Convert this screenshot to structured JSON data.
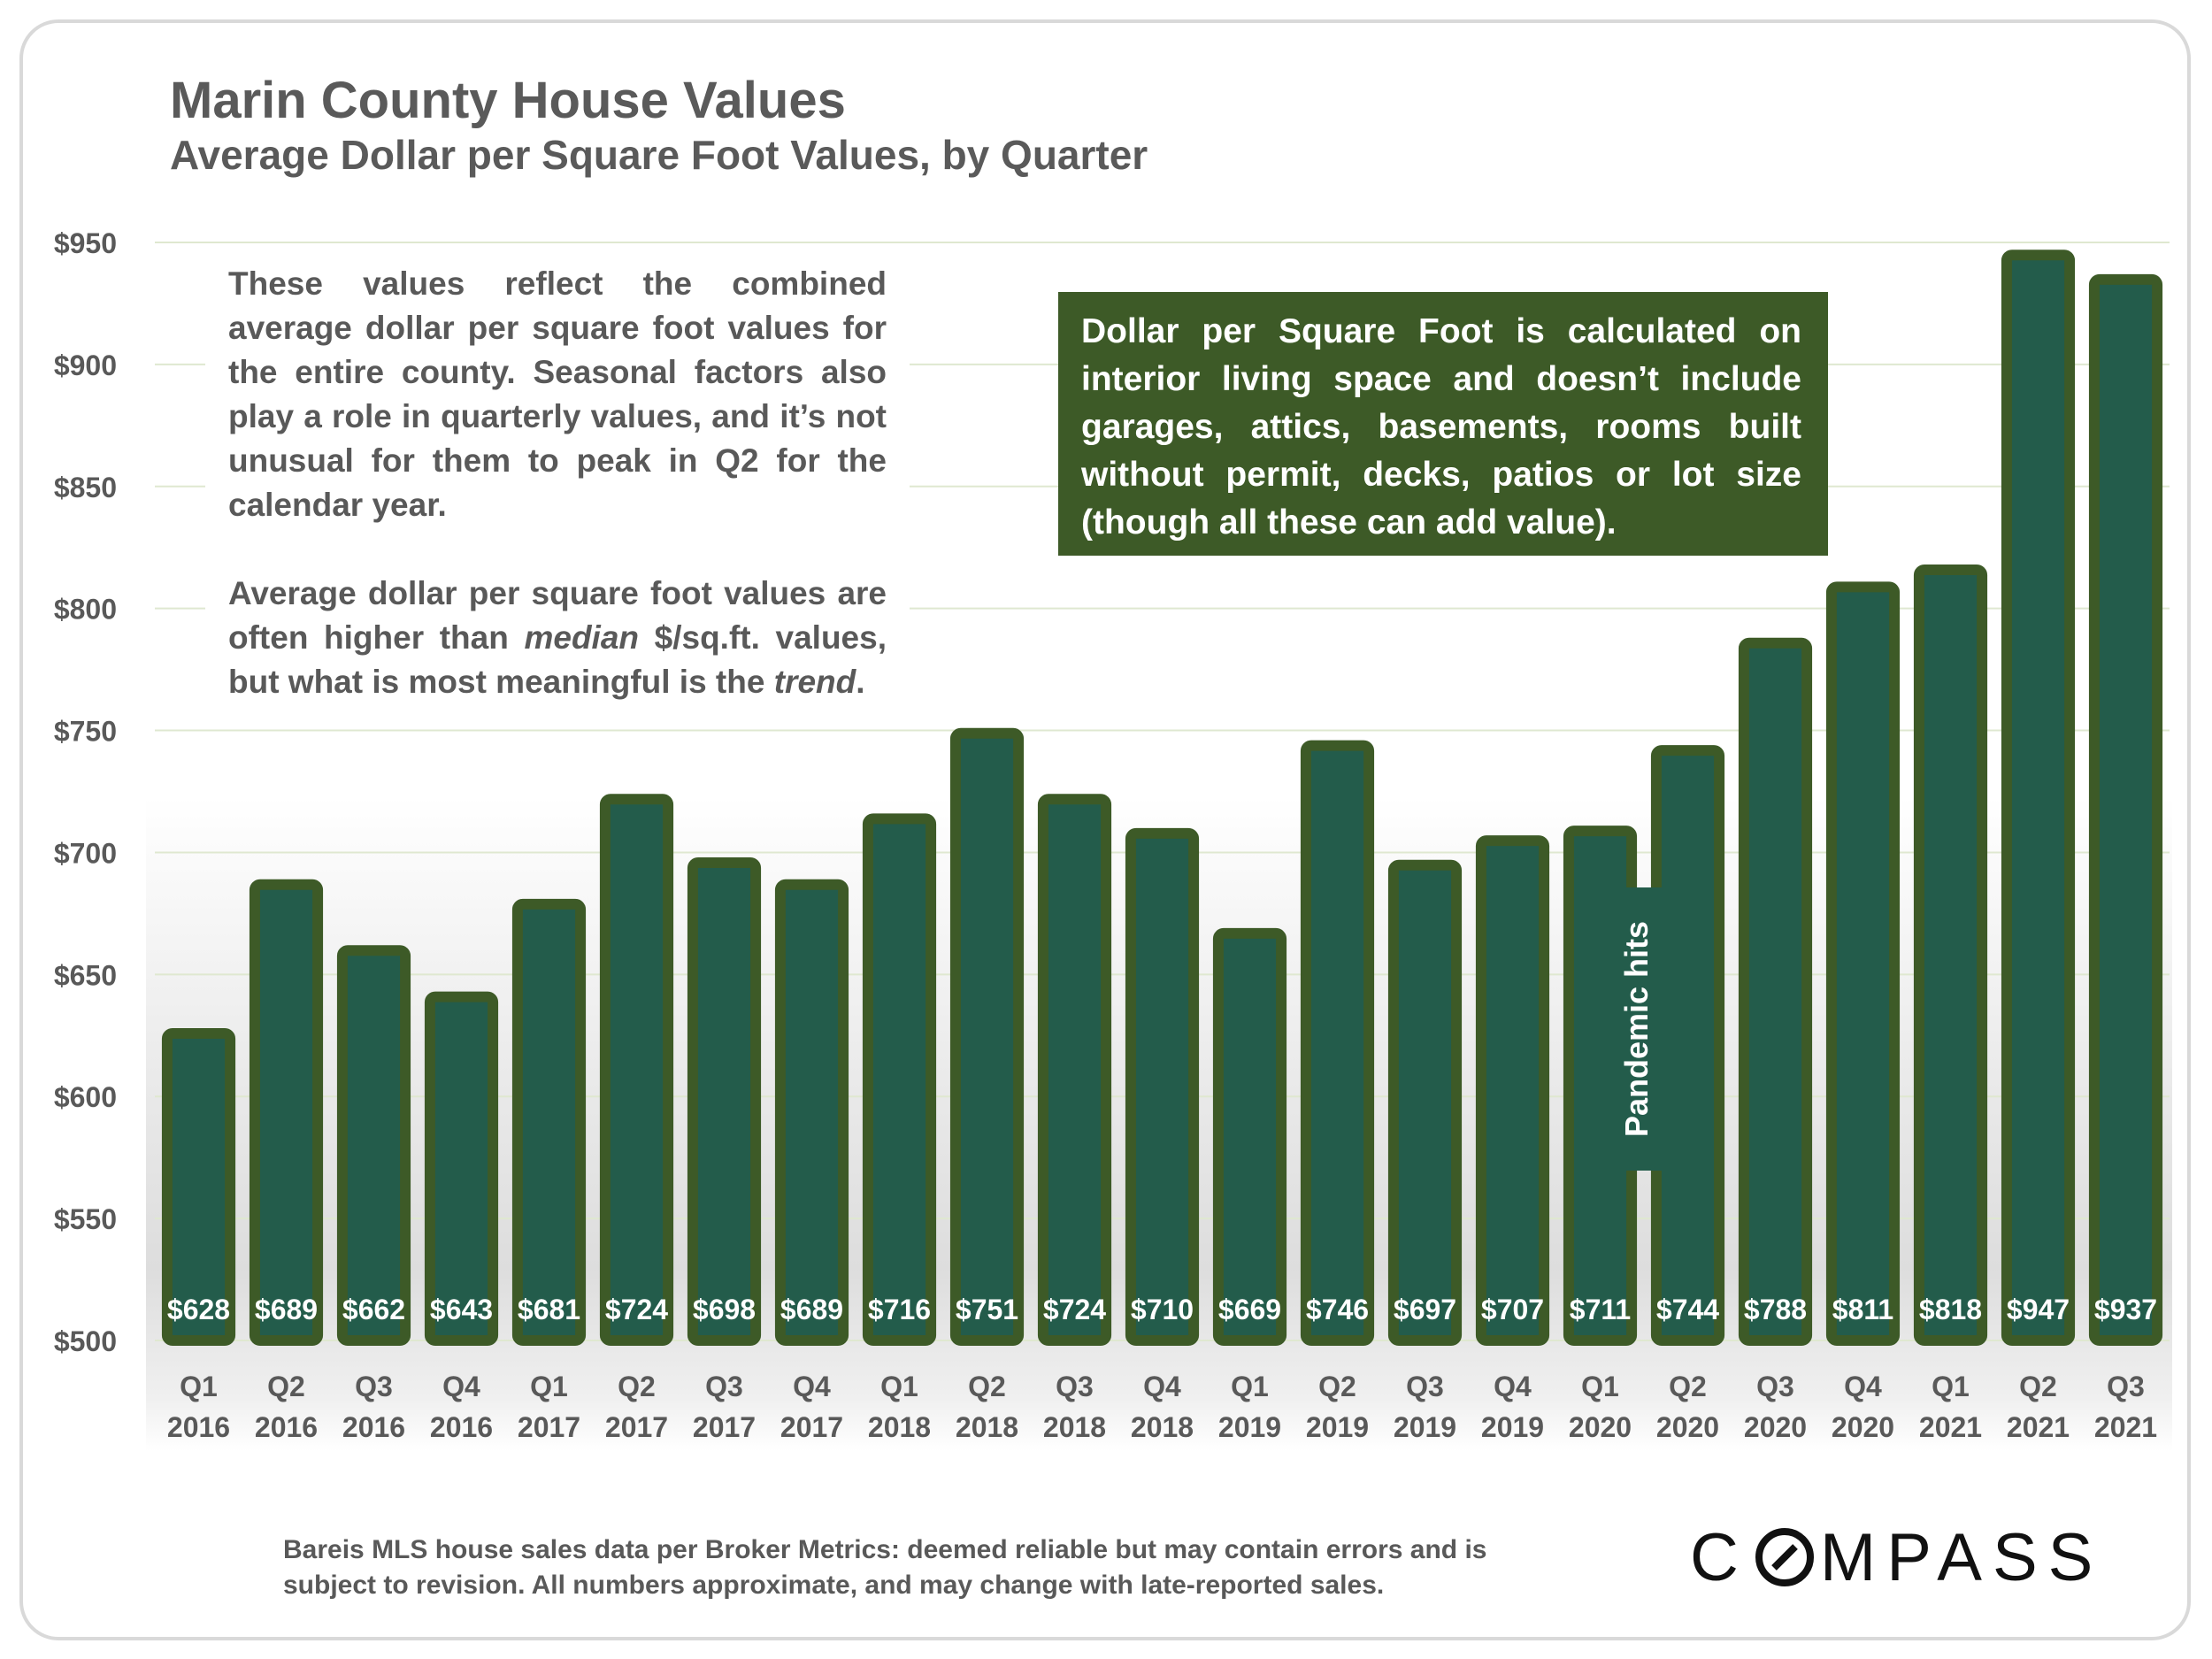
{
  "title": "Marin County House Values",
  "subtitle": "Average Dollar per Square Foot Values, by Quarter",
  "note_left": {
    "p1": "These values reflect the combined average dollar per square foot values for the entire county. Seasonal factors also play a role in quarterly values, and it’s not unusual for them to peak in Q2 for the calendar year.",
    "p2_a": "Average dollar per square foot values are often higher than ",
    "p2_median": "median",
    "p2_b": " $/sq.ft. values, but what is most meaningful is the ",
    "p2_trend": "trend",
    "p2_c": "."
  },
  "note_right": "Dollar per Square Foot is calculated on interior living space and doesn’t include garages, attics, basements, rooms built without permit, decks, patios or lot size (though all these can add value).",
  "annotation": "Pandemic hits",
  "source": "Bareis MLS house sales data per Broker Metrics:  deemed reliable but may contain errors and is subject to revision. All numbers approximate, and may change with late-reported sales.",
  "logo_text": {
    "left": "C",
    "right": "MPASS"
  },
  "colors": {
    "bar_fill": "#235c4b",
    "bar_border": "#3d5a27",
    "text": "#595959",
    "grid": "#dfe8d0"
  },
  "chart_data": {
    "type": "bar",
    "title": "Marin County House Values",
    "subtitle": "Average Dollar per Square Foot Values, by Quarter",
    "xlabel": "",
    "ylabel": "",
    "ylim": [
      500,
      950
    ],
    "yticks": [
      500,
      550,
      600,
      650,
      700,
      750,
      800,
      850,
      900,
      950
    ],
    "ytick_labels": [
      "$500",
      "$550",
      "$600",
      "$650",
      "$700",
      "$750",
      "$800",
      "$850",
      "$900",
      "$950"
    ],
    "categories": [
      [
        "Q1",
        "2016"
      ],
      [
        "Q2",
        "2016"
      ],
      [
        "Q3",
        "2016"
      ],
      [
        "Q4",
        "2016"
      ],
      [
        "Q1",
        "2017"
      ],
      [
        "Q2",
        "2017"
      ],
      [
        "Q3",
        "2017"
      ],
      [
        "Q4",
        "2017"
      ],
      [
        "Q1",
        "2018"
      ],
      [
        "Q2",
        "2018"
      ],
      [
        "Q3",
        "2018"
      ],
      [
        "Q4",
        "2018"
      ],
      [
        "Q1",
        "2019"
      ],
      [
        "Q2",
        "2019"
      ],
      [
        "Q3",
        "2019"
      ],
      [
        "Q4",
        "2019"
      ],
      [
        "Q1",
        "2020"
      ],
      [
        "Q2",
        "2020"
      ],
      [
        "Q3",
        "2020"
      ],
      [
        "Q4",
        "2020"
      ],
      [
        "Q1",
        "2021"
      ],
      [
        "Q2",
        "2021"
      ],
      [
        "Q3",
        "2021"
      ]
    ],
    "values": [
      628,
      689,
      662,
      643,
      681,
      724,
      698,
      689,
      716,
      751,
      724,
      710,
      669,
      746,
      697,
      707,
      711,
      744,
      788,
      811,
      818,
      947,
      937
    ],
    "data_labels": [
      "$628",
      "$689",
      "$662",
      "$643",
      "$681",
      "$724",
      "$698",
      "$689",
      "$716",
      "$751",
      "$724",
      "$710",
      "$669",
      "$746",
      "$697",
      "$707",
      "$711",
      "$744",
      "$788",
      "$811",
      "$818",
      "$947",
      "$937"
    ],
    "grid": true,
    "annotations": [
      "Pandemic hits"
    ]
  }
}
